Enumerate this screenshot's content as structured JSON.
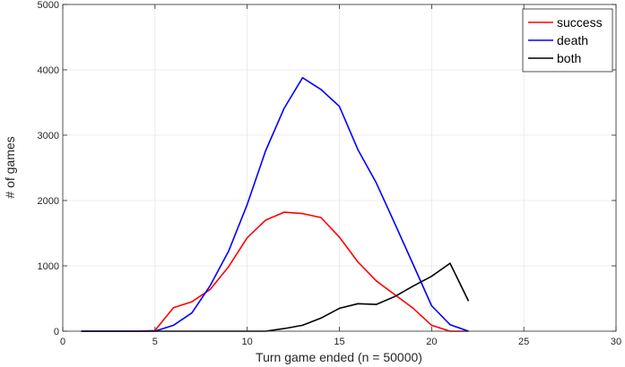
{
  "chart_data": {
    "type": "line",
    "title": "",
    "xlabel": "Turn game ended (n = 50000)",
    "ylabel": "# of games",
    "xlim": [
      0,
      30
    ],
    "ylim": [
      0,
      5000
    ],
    "xticks": [
      0,
      5,
      10,
      15,
      20,
      25,
      30
    ],
    "yticks": [
      0,
      1000,
      2000,
      3000,
      4000,
      5000
    ],
    "grid": true,
    "legend_position": "top-right",
    "series": [
      {
        "name": "success",
        "color": "#ff0000",
        "x": [
          1,
          2,
          3,
          4,
          5,
          6,
          7,
          8,
          9,
          10,
          11,
          12,
          13,
          14,
          15,
          16,
          17,
          18,
          19,
          20,
          21,
          22
        ],
        "values": [
          0,
          0,
          0,
          0,
          10,
          360,
          450,
          640,
          990,
          1430,
          1700,
          1820,
          1800,
          1740,
          1440,
          1060,
          770,
          560,
          350,
          90,
          0,
          0
        ]
      },
      {
        "name": "death",
        "color": "#0000ff",
        "x": [
          1,
          2,
          3,
          4,
          5,
          6,
          7,
          8,
          9,
          10,
          11,
          12,
          13,
          14,
          15,
          16,
          17,
          18,
          19,
          20,
          21,
          22
        ],
        "values": [
          0,
          0,
          0,
          0,
          0,
          90,
          280,
          700,
          1230,
          1940,
          2760,
          3410,
          3880,
          3700,
          3440,
          2780,
          2270,
          1650,
          1020,
          390,
          100,
          0
        ]
      },
      {
        "name": "both",
        "color": "#000000",
        "x": [
          1,
          2,
          3,
          4,
          5,
          6,
          7,
          8,
          9,
          10,
          11,
          12,
          13,
          14,
          15,
          16,
          17,
          18,
          19,
          20,
          21,
          22
        ],
        "values": [
          0,
          0,
          0,
          0,
          0,
          0,
          0,
          0,
          0,
          0,
          0,
          40,
          90,
          200,
          350,
          420,
          410,
          530,
          690,
          840,
          1040,
          460
        ]
      }
    ]
  }
}
